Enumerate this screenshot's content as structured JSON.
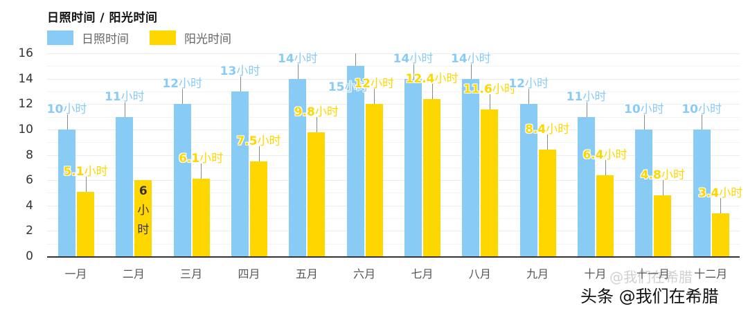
{
  "title": "日照时间 / 阳光时间",
  "legend": [
    {
      "label": "日照时间",
      "color": "#88CCF6"
    },
    {
      "label": "阳光时间",
      "color": "#FFD700"
    }
  ],
  "unit_suffix": "小时",
  "y_ticks": [
    "16",
    "14",
    "12",
    "10",
    "8",
    "6",
    "4",
    "2",
    "0"
  ],
  "x_labels": [
    "一月",
    "二月",
    "三月",
    "四月",
    "五月",
    "六月",
    "七月",
    "八月",
    "九月",
    "十月",
    "十一月",
    "十二月"
  ],
  "watermark_faint": "@我们在希腊",
  "watermark_bold": "头条 @我们在希腊",
  "chart_data": {
    "type": "bar",
    "title": "日照时间 / 阳光时间",
    "xlabel": "",
    "ylabel": "",
    "ylim": [
      0,
      16
    ],
    "grid": true,
    "legend_position": "top-left",
    "categories": [
      "一月",
      "二月",
      "三月",
      "四月",
      "五月",
      "六月",
      "七月",
      "八月",
      "九月",
      "十月",
      "十一月",
      "十二月"
    ],
    "series": [
      {
        "name": "日照时间",
        "color": "#88CCF6",
        "values": [
          10,
          11,
          12,
          13,
          14,
          15,
          14,
          14,
          12,
          11,
          10,
          10
        ]
      },
      {
        "name": "阳光时间",
        "color": "#FFD700",
        "values": [
          5.1,
          6,
          6.1,
          7.5,
          9.8,
          12,
          12.4,
          11.6,
          8.4,
          6.4,
          4.8,
          3.4
        ]
      }
    ],
    "data_label_suffix": "小时"
  }
}
